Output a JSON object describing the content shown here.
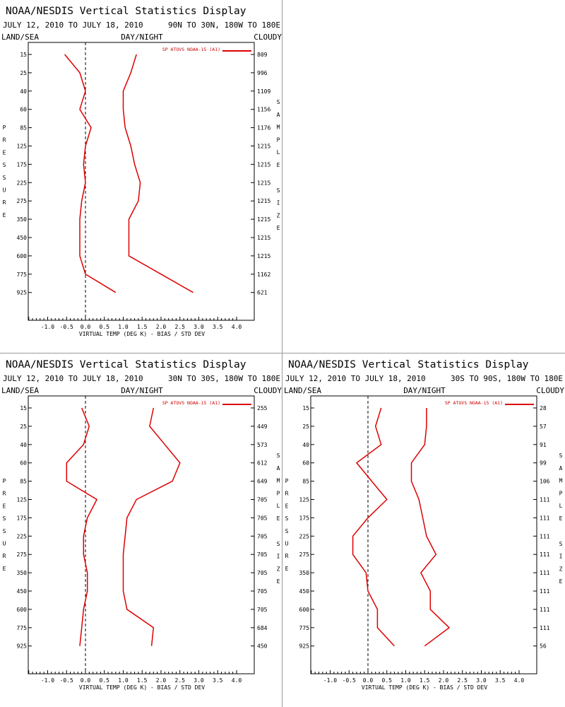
{
  "header": {
    "title": "NOAA/NESDIS Vertical Statistics Display",
    "date_range": "JULY 12, 2010 TO JULY 18, 2010",
    "land_sea": "LAND/SEA",
    "day_night": "DAY/NIGHT",
    "cloudy": "CLOUDY",
    "pressure_label": "PRESSURE",
    "sample_label": "SAMPLE SIZE"
  },
  "colors": {
    "series": "#dd0000",
    "axis": "#000000",
    "zero_line": "#000000"
  },
  "chart_data": [
    {
      "type": "line",
      "region": "90N TO 30N, 180W TO 180E",
      "legend": "SP ATOVS NOAA-15 (A1)",
      "xlabel": "VIRTUAL TEMP (DEG K) - BIAS / STD DEV",
      "xlim": [
        -1.5,
        4.0
      ],
      "xticks": [
        "-1.0",
        "-0.5",
        "0.0",
        "0.5",
        "1.0",
        "1.5",
        "2.0",
        "2.5",
        "3.0",
        "3.5",
        "4.0"
      ],
      "pressure_levels": [
        "15",
        "25",
        "40",
        "60",
        "85",
        "125",
        "175",
        "225",
        "275",
        "350",
        "450",
        "600",
        "775",
        "925"
      ],
      "sample_size": [
        "809",
        "996",
        "1109",
        "1156",
        "1176",
        "1215",
        "1215",
        "1215",
        "1215",
        "1215",
        "1215",
        "1215",
        "1162",
        "621"
      ],
      "bias": [
        -0.55,
        -0.15,
        0.0,
        -0.15,
        0.15,
        0.0,
        -0.05,
        0.0,
        -0.1,
        -0.15,
        -0.15,
        -0.15,
        0.0,
        0.8
      ],
      "std_dev": [
        1.35,
        1.2,
        1.0,
        1.0,
        1.05,
        1.2,
        1.3,
        1.45,
        1.4,
        1.15,
        1.15,
        1.15,
        2.0,
        2.85
      ]
    },
    {
      "type": "line",
      "region": "30N TO 30S, 180W TO 180E",
      "legend": "SP ATOVS NOAA-15 (A1)",
      "xlabel": "VIRTUAL TEMP (DEG K) - BIAS / STD DEV",
      "xlim": [
        -1.5,
        4.0
      ],
      "xticks": [
        "-1.0",
        "-0.5",
        "0.0",
        "0.5",
        "1.0",
        "1.5",
        "2.0",
        "2.5",
        "3.0",
        "3.5",
        "4.0"
      ],
      "pressure_levels": [
        "15",
        "25",
        "40",
        "60",
        "85",
        "125",
        "175",
        "225",
        "275",
        "350",
        "450",
        "600",
        "775",
        "925"
      ],
      "sample_size": [
        "255",
        "449",
        "573",
        "612",
        "649",
        "705",
        "705",
        "705",
        "705",
        "705",
        "705",
        "705",
        "684",
        "450"
      ],
      "bias": [
        -0.1,
        0.1,
        -0.05,
        -0.5,
        -0.5,
        0.3,
        0.05,
        -0.05,
        -0.05,
        0.05,
        0.05,
        -0.05,
        -0.1,
        -0.15
      ],
      "std_dev": [
        1.8,
        1.7,
        2.1,
        2.5,
        2.3,
        1.35,
        1.1,
        1.05,
        1.0,
        1.0,
        1.0,
        1.1,
        1.8,
        1.75
      ]
    },
    {
      "type": "line",
      "region": "30S TO 90S, 180W TO 180E",
      "legend": "SP ATOVS NOAA-15 (A1)",
      "xlabel": "VIRTUAL TEMP (DEG K) - BIAS / STD DEV",
      "xlim": [
        -1.5,
        4.0
      ],
      "xticks": [
        "-1.0",
        "-0.5",
        "0.0",
        "0.5",
        "1.0",
        "1.5",
        "2.0",
        "2.5",
        "3.0",
        "3.5",
        "4.0"
      ],
      "pressure_levels": [
        "15",
        "25",
        "40",
        "60",
        "85",
        "125",
        "175",
        "225",
        "275",
        "350",
        "450",
        "600",
        "775",
        "925"
      ],
      "sample_size": [
        "28",
        "57",
        "91",
        "99",
        "106",
        "111",
        "111",
        "111",
        "111",
        "111",
        "111",
        "111",
        "111",
        "56"
      ],
      "bias": [
        0.35,
        0.2,
        0.35,
        -0.3,
        0.1,
        0.5,
        0.0,
        -0.4,
        -0.4,
        -0.05,
        0.0,
        0.25,
        0.25,
        0.7
      ],
      "std_dev": [
        1.55,
        1.55,
        1.5,
        1.15,
        1.15,
        1.35,
        1.45,
        1.55,
        1.8,
        1.4,
        1.65,
        1.65,
        2.15,
        1.5
      ]
    }
  ]
}
